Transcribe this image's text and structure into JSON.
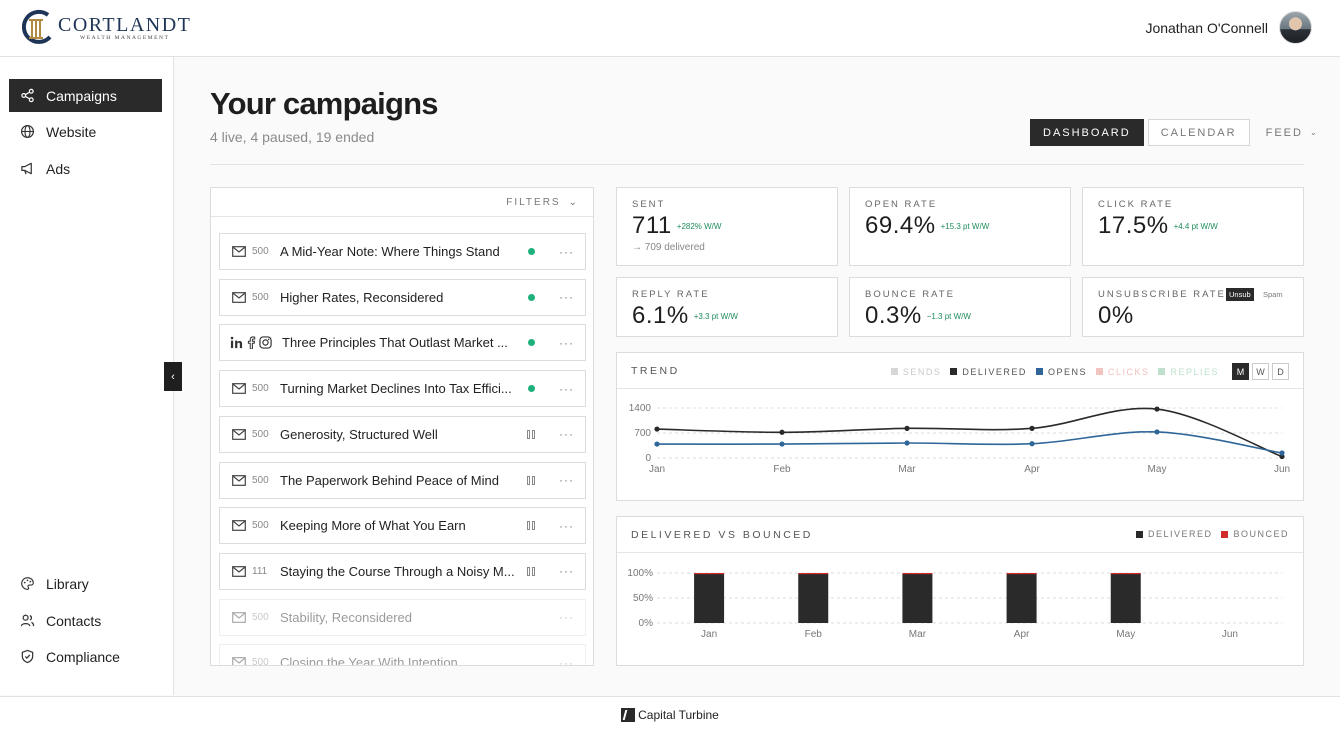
{
  "brand": {
    "name": "CORTLANDT",
    "tagline": "WEALTH MANAGEMENT",
    "navy": "#1e3557"
  },
  "user": {
    "name": "Jonathan O'Connell"
  },
  "nav": {
    "top": [
      {
        "label": "Campaigns",
        "icon": "share-icon",
        "active": true
      },
      {
        "label": "Website",
        "icon": "globe-icon"
      },
      {
        "label": "Ads",
        "icon": "megaphone-icon"
      }
    ],
    "bottom": [
      {
        "label": "Library",
        "icon": "palette-icon"
      },
      {
        "label": "Contacts",
        "icon": "users-icon"
      },
      {
        "label": "Compliance",
        "icon": "shield-icon"
      }
    ]
  },
  "page": {
    "title": "Your campaigns",
    "subtitle": "4 live, 4 paused, 19 ended"
  },
  "views": {
    "dashboard": "DASHBOARD",
    "calendar": "CALENDAR",
    "feed": "FEED",
    "active": "DASHBOARD"
  },
  "filters_label": "FILTERS",
  "campaigns": [
    {
      "channel": "email",
      "count": "500",
      "name": "A Mid-Year Note: Where Things Stand",
      "status": "live"
    },
    {
      "channel": "email",
      "count": "500",
      "name": "Higher Rates, Reconsidered",
      "status": "live"
    },
    {
      "channel": "social",
      "count": "",
      "name": "Three Principles That Outlast Market ...",
      "status": "live"
    },
    {
      "channel": "email",
      "count": "500",
      "name": "Turning Market Declines Into Tax Effici...",
      "status": "live"
    },
    {
      "channel": "email",
      "count": "500",
      "name": "Generosity, Structured Well",
      "status": "paused"
    },
    {
      "channel": "email",
      "count": "500",
      "name": "The Paperwork Behind Peace of Mind",
      "status": "paused"
    },
    {
      "channel": "email",
      "count": "500",
      "name": "Keeping More of What You Earn",
      "status": "paused"
    },
    {
      "channel": "email",
      "count": "111",
      "name": "Staying the Course Through a Noisy M...",
      "status": "paused"
    },
    {
      "channel": "email",
      "count": "500",
      "name": "Stability, Reconsidered",
      "status": "ended"
    },
    {
      "channel": "email",
      "count": "500",
      "name": "Closing the Year With Intention",
      "status": "ended"
    }
  ],
  "stats": {
    "sent": {
      "label": "SENT",
      "value": "711",
      "delta": "+282% W/W",
      "foot": "→ 709 delivered"
    },
    "open_rate": {
      "label": "OPEN RATE",
      "value": "69.4%",
      "delta": "+15.3 pt W/W"
    },
    "click_rate": {
      "label": "CLICK RATE",
      "value": "17.5%",
      "delta": "+4.4 pt W/W"
    },
    "reply_rate": {
      "label": "REPLY RATE",
      "value": "6.1%",
      "delta": "+3.3 pt W/W"
    },
    "bounce_rate": {
      "label": "BOUNCE RATE",
      "value": "0.3%",
      "delta": "−1.3 pt W/W"
    },
    "unsub_rate": {
      "label": "UNSUBSCRIBE RATE",
      "value": "0%",
      "tag_active": "Unsub",
      "tag_other": "Spam"
    }
  },
  "trend": {
    "title": "TREND",
    "legend": [
      "SENDS",
      "DELIVERED",
      "OPENS",
      "CLICKS",
      "REPLIES"
    ],
    "ranges": [
      "M",
      "W",
      "D"
    ],
    "active_range": "M",
    "colors": {
      "sends": "#d6d6d6",
      "delivered": "#2a2a2a",
      "opens": "#2f6699",
      "clicks": "#f2c4c0",
      "replies": "#bfe0cc"
    }
  },
  "delivered_vs_bounced": {
    "title": "DELIVERED VS BOUNCED",
    "legend": [
      "DELIVERED",
      "BOUNCED"
    ],
    "colors": {
      "delivered": "#2a2a2a",
      "bounced": "#d22b2b"
    }
  },
  "chart_data": [
    {
      "type": "line",
      "title": "TREND",
      "categories": [
        "Jan",
        "Feb",
        "Mar",
        "Apr",
        "May",
        "Jun"
      ],
      "yticks": [
        0,
        700,
        1400
      ],
      "ylim": [
        0,
        1400
      ],
      "series": [
        {
          "name": "DELIVERED",
          "values": [
            810,
            720,
            830,
            830,
            1370,
            40
          ]
        },
        {
          "name": "OPENS",
          "values": [
            390,
            390,
            420,
            400,
            730,
            140
          ]
        }
      ]
    },
    {
      "type": "bar",
      "title": "DELIVERED VS BOUNCED",
      "categories": [
        "Jan",
        "Feb",
        "Mar",
        "Apr",
        "May",
        "Jun"
      ],
      "yticks": [
        "0%",
        "50%",
        "100%"
      ],
      "ylim": [
        0,
        100
      ],
      "series": [
        {
          "name": "DELIVERED",
          "values": [
            99.7,
            99.7,
            99.7,
            99.7,
            99.7,
            0
          ]
        },
        {
          "name": "BOUNCED",
          "values": [
            0.3,
            0.3,
            0.3,
            0.3,
            0.3,
            0
          ]
        }
      ]
    }
  ],
  "footer": {
    "label": "Capital Turbine"
  }
}
